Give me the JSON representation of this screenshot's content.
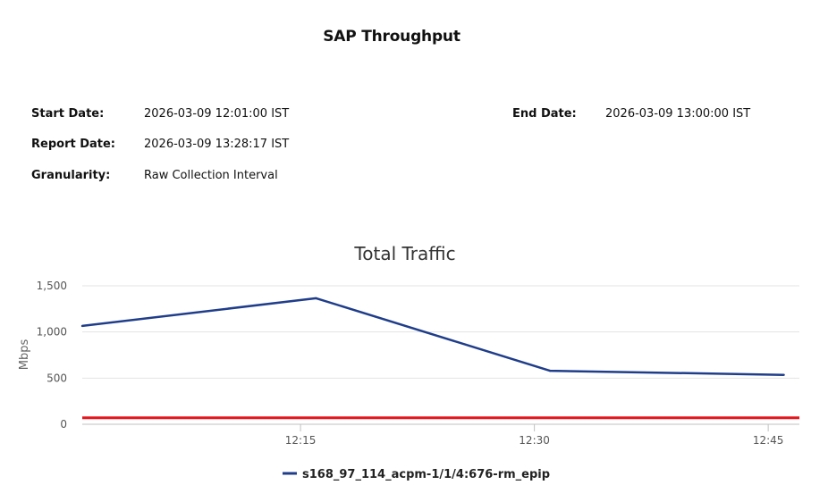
{
  "report": {
    "title": "SAP Throughput",
    "start_date_label": "Start Date:",
    "start_date_value": "2026-03-09 12:01:00 IST",
    "end_date_label": "End Date:",
    "end_date_value": "2026-03-09 13:00:00 IST",
    "report_date_label": "Report Date:",
    "report_date_value": "2026-03-09 13:28:17 IST",
    "granularity_label": "Granularity:",
    "granularity_value": "Raw Collection Interval"
  },
  "chart_data": {
    "type": "line",
    "title": "Total Traffic",
    "xlabel": "",
    "ylabel": "Mbps",
    "x_ticks": [
      "12:15",
      "12:30",
      "12:45"
    ],
    "xlim": [
      "12:01",
      "12:47"
    ],
    "y_ticks": [
      "0",
      "500",
      "1,000",
      "1,500"
    ],
    "ylim": [
      0,
      1500
    ],
    "grid": true,
    "legend_position": "bottom",
    "series": [
      {
        "name": "s168_97_114_acpm-1/1/4:676-rm_epip",
        "color": "#1f3d8a",
        "x": [
          "12:01",
          "12:16",
          "12:31",
          "12:46"
        ],
        "y": [
          1065,
          1365,
          580,
          535
        ]
      }
    ],
    "threshold": {
      "value": 70,
      "color": "#e8141b"
    }
  }
}
